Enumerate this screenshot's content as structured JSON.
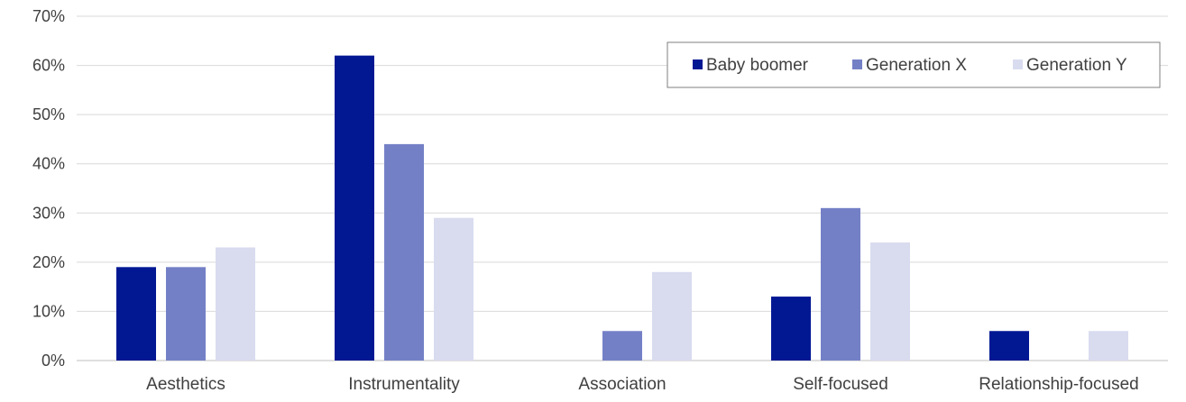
{
  "chart_data": {
    "type": "bar",
    "title": "",
    "xlabel": "",
    "ylabel": "",
    "categories": [
      "Aesthetics",
      "Instrumentality",
      "Association",
      "Self-focused",
      "Relationship-focused"
    ],
    "series": [
      {
        "name": "Baby boomer",
        "color": "#021893",
        "values": [
          19,
          62,
          0,
          13,
          6
        ]
      },
      {
        "name": "Generation X",
        "color": "#7480c6",
        "values": [
          19,
          44,
          6,
          31,
          0
        ]
      },
      {
        "name": "Generation Y",
        "color": "#d9dcef",
        "values": [
          23,
          29,
          18,
          24,
          6
        ]
      }
    ],
    "ylim": [
      0,
      70
    ],
    "yticks": [
      0,
      10,
      20,
      30,
      40,
      50,
      60,
      70
    ],
    "ytick_labels": [
      "0%",
      "10%",
      "20%",
      "30%",
      "40%",
      "50%",
      "60%",
      "70%"
    ],
    "grid": true,
    "legend_position": "top-right"
  }
}
